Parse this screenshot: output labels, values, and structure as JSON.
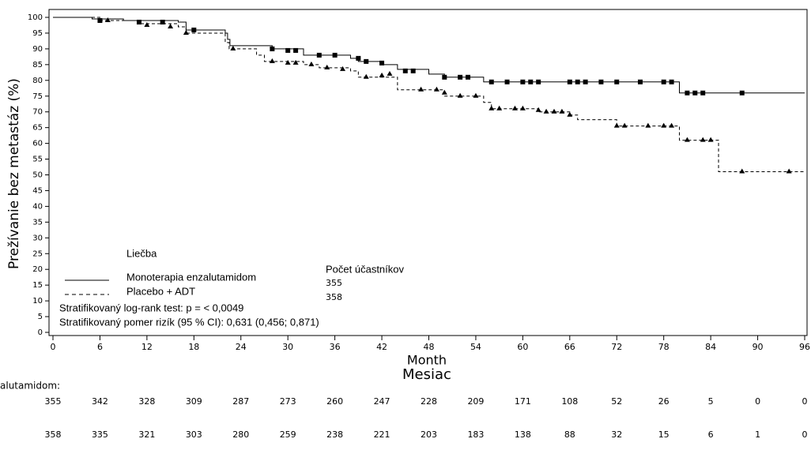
{
  "chart_data": {
    "type": "km",
    "y_label": "Prežívanie bez metastáz (%)",
    "x_label": "Month",
    "x_label_overlay": "Mesiac",
    "xlim": [
      0,
      96
    ],
    "xticks": [
      0,
      6,
      12,
      18,
      24,
      30,
      36,
      42,
      48,
      54,
      60,
      66,
      72,
      78,
      84,
      90,
      96
    ],
    "ylim": [
      0,
      100
    ],
    "yticks": [
      0,
      5,
      10,
      15,
      20,
      25,
      30,
      35,
      40,
      45,
      50,
      55,
      60,
      65,
      70,
      75,
      80,
      85,
      90,
      95,
      100
    ],
    "legend_title": "Liečba",
    "n_header": "Počet účastníkov",
    "stats": [
      "Stratifikovaný log-rank test: p = < 0,0049",
      "Stratifikovaný pomer rizík (95 % CI): 0,631 (0,456; 0,871)"
    ],
    "series": [
      {
        "name": "Monoterapia enzalutamidom",
        "color": "#000000",
        "dash": false,
        "marker": "square",
        "n": 355,
        "x": [
          0,
          5,
          9,
          16,
          17,
          22,
          22.3,
          22.6,
          28,
          32,
          38,
          39,
          42,
          44,
          48,
          50,
          55,
          80,
          96
        ],
        "values": [
          100,
          99.5,
          99,
          98.5,
          96,
          95,
          93,
          91,
          90,
          88,
          87,
          86,
          85,
          83.5,
          82,
          81,
          79.5,
          76,
          76
        ],
        "censor_x": [
          6,
          11,
          14,
          18,
          28,
          30,
          31,
          34,
          36,
          39,
          40,
          42,
          45,
          46,
          50,
          52,
          53,
          56,
          58,
          60,
          61,
          62,
          66,
          67,
          68,
          70,
          72,
          75,
          78,
          79,
          81,
          82,
          83,
          88
        ],
        "censor_values": [
          99,
          98.5,
          98.5,
          96,
          90,
          89.5,
          89.5,
          88,
          88,
          87,
          86,
          85.5,
          83,
          83,
          81,
          81,
          81,
          79.5,
          79.5,
          79.5,
          79.5,
          79.5,
          79.5,
          79.5,
          79.5,
          79.5,
          79.5,
          79.5,
          79.5,
          79.5,
          76,
          76,
          76,
          76
        ],
        "at_risk": [
          355,
          342,
          328,
          309,
          287,
          273,
          260,
          247,
          228,
          209,
          171,
          108,
          52,
          26,
          5,
          0,
          0
        ]
      },
      {
        "name": "Placebo + ADT",
        "color": "#000000",
        "dash": true,
        "marker": "triangle",
        "n": 358,
        "x": [
          0,
          6,
          11,
          16,
          17,
          22,
          22.5,
          26,
          27,
          32,
          34,
          38,
          39,
          44,
          50,
          55,
          56,
          62,
          66,
          67,
          72,
          80,
          85,
          96
        ],
        "values": [
          100,
          99,
          98,
          97,
          95,
          92,
          90,
          88,
          86,
          85,
          84,
          83,
          81,
          77,
          75,
          73,
          71,
          70,
          69,
          67.5,
          65.5,
          61,
          51,
          51
        ],
        "censor_x": [
          7,
          12,
          15,
          17,
          23,
          28,
          30,
          31,
          33,
          35,
          37,
          40,
          42,
          43,
          47,
          49,
          50,
          52,
          54,
          56,
          57,
          59,
          60,
          62,
          63,
          64,
          65,
          66,
          72,
          73,
          76,
          78,
          79,
          81,
          83,
          84,
          88,
          94
        ],
        "censor_values": [
          99,
          97.5,
          97,
          95,
          90,
          86,
          85.5,
          85.5,
          85,
          84,
          83.5,
          81,
          81.5,
          82,
          77,
          77,
          76,
          75,
          75,
          71,
          71,
          71,
          71,
          70.5,
          70,
          70,
          70,
          69,
          65.5,
          65.5,
          65.5,
          65.5,
          65.5,
          61,
          61,
          61,
          51,
          51
        ],
        "at_risk": [
          358,
          335,
          321,
          303,
          280,
          259,
          238,
          221,
          203,
          183,
          138,
          88,
          32,
          15,
          6,
          1,
          0
        ]
      }
    ],
    "at_risk_label": "alutamidom:"
  }
}
